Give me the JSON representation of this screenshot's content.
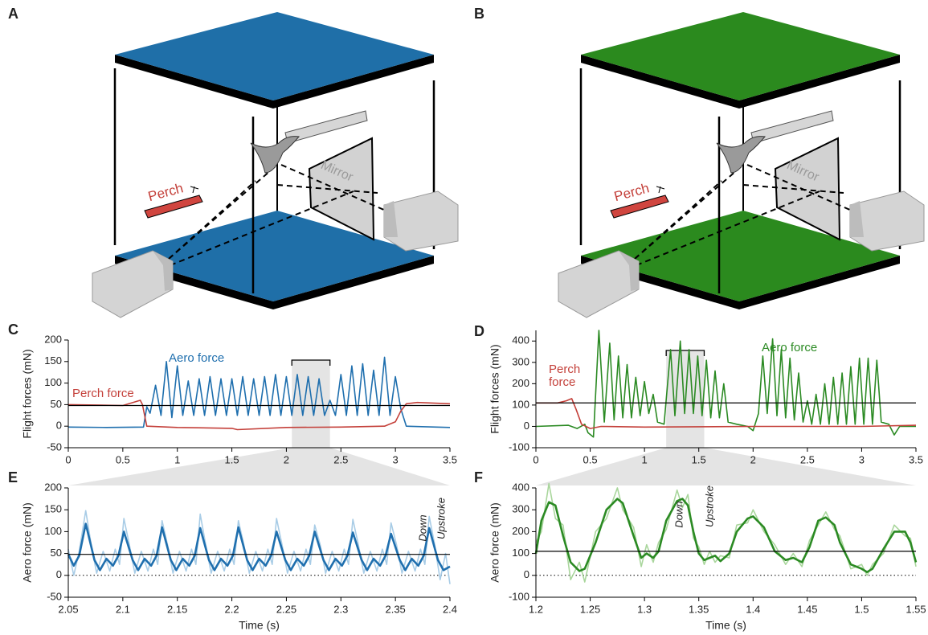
{
  "diagrams": [
    {
      "panel": "A",
      "perch": "Perch",
      "mirror": "Mirror"
    },
    {
      "panel": "B",
      "perch": "Perch",
      "mirror": "Mirror"
    }
  ],
  "chart_data": [
    {
      "type": "line",
      "panel": "C",
      "ylabel": "Flight forces (mN)",
      "xlim": [
        0,
        3.5
      ],
      "xticks": [
        0,
        0.5,
        1,
        1.5,
        2,
        2.5,
        3,
        3.5
      ],
      "ylim": [
        -50,
        200
      ],
      "yticks": [
        -50,
        0,
        50,
        100,
        150,
        200
      ],
      "reference_line": 48,
      "highlight": [
        2.05,
        2.4
      ],
      "series": [
        {
          "name": "Aero force",
          "color": "#1f6fae",
          "x": [
            0,
            0.35,
            0.69,
            0.72,
            0.75,
            0.8,
            0.85,
            0.9,
            0.95,
            1.0,
            1.05,
            1.1,
            1.15,
            1.2,
            1.25,
            1.3,
            1.35,
            1.4,
            1.45,
            1.5,
            1.55,
            1.6,
            1.65,
            1.7,
            1.75,
            1.8,
            1.85,
            1.9,
            1.95,
            2.0,
            2.05,
            2.1,
            2.15,
            2.2,
            2.25,
            2.3,
            2.35,
            2.4,
            2.45,
            2.5,
            2.55,
            2.6,
            2.65,
            2.7,
            2.75,
            2.8,
            2.85,
            2.9,
            2.95,
            3.0,
            3.05,
            3.1,
            3.5
          ],
          "values": [
            -2,
            -3,
            -2,
            45,
            30,
            95,
            25,
            150,
            20,
            140,
            25,
            105,
            25,
            110,
            25,
            115,
            25,
            110,
            25,
            110,
            25,
            115,
            25,
            110,
            25,
            115,
            25,
            120,
            25,
            115,
            25,
            120,
            25,
            115,
            25,
            110,
            25,
            60,
            25,
            120,
            25,
            140,
            25,
            145,
            25,
            130,
            25,
            160,
            25,
            115,
            40,
            0,
            -3
          ]
        },
        {
          "name": "Perch force",
          "color": "#c4403a",
          "x": [
            0,
            0.5,
            0.66,
            0.68,
            0.72,
            1.0,
            1.5,
            1.55,
            2.0,
            2.5,
            2.9,
            3.0,
            3.05,
            3.1,
            3.2,
            3.5
          ],
          "values": [
            50,
            48,
            60,
            50,
            0,
            -3,
            -5,
            -8,
            -3,
            -2,
            0,
            10,
            35,
            52,
            55,
            52
          ]
        }
      ]
    },
    {
      "type": "line",
      "panel": "D",
      "ylabel": "Flight forces (mN)",
      "xlim": [
        0,
        3.5
      ],
      "xticks": [
        0,
        0.5,
        1,
        1.5,
        2,
        2.5,
        3,
        3.5
      ],
      "ylim": [
        -100,
        450
      ],
      "yticks": [
        -100,
        0,
        100,
        200,
        300,
        400
      ],
      "reference_line": 110,
      "highlight": [
        1.2,
        1.55
      ],
      "series": [
        {
          "name": "Aero force",
          "color": "#2b8a23",
          "x": [
            0,
            0.3,
            0.38,
            0.45,
            0.48,
            0.53,
            0.58,
            0.63,
            0.68,
            0.72,
            0.76,
            0.8,
            0.84,
            0.88,
            0.92,
            0.96,
            1.0,
            1.04,
            1.08,
            1.12,
            1.18,
            1.24,
            1.28,
            1.33,
            1.37,
            1.41,
            1.45,
            1.49,
            1.53,
            1.57,
            1.61,
            1.65,
            1.69,
            1.73,
            1.77,
            1.85,
            1.95,
            2.0,
            2.05,
            2.09,
            2.13,
            2.18,
            2.22,
            2.26,
            2.3,
            2.34,
            2.38,
            2.42,
            2.46,
            2.5,
            2.54,
            2.58,
            2.62,
            2.66,
            2.7,
            2.74,
            2.78,
            2.82,
            2.86,
            2.9,
            2.94,
            2.98,
            3.02,
            3.06,
            3.1,
            3.14,
            3.18,
            3.25,
            3.3,
            3.35,
            3.5
          ],
          "values": [
            0,
            5,
            -10,
            10,
            -30,
            -50,
            450,
            20,
            390,
            30,
            330,
            40,
            290,
            40,
            230,
            50,
            210,
            60,
            150,
            20,
            10,
            360,
            50,
            400,
            60,
            360,
            60,
            330,
            50,
            310,
            40,
            260,
            40,
            200,
            20,
            10,
            0,
            -20,
            60,
            330,
            60,
            410,
            50,
            360,
            40,
            320,
            30,
            250,
            20,
            120,
            10,
            150,
            10,
            200,
            10,
            230,
            10,
            250,
            10,
            280,
            10,
            320,
            10,
            320,
            10,
            310,
            20,
            10,
            -40,
            0,
            0
          ]
        },
        {
          "name": "Perch force",
          "color": "#c4403a",
          "x": [
            0,
            0.2,
            0.28,
            0.33,
            0.37,
            0.42,
            0.5,
            0.6,
            1.0,
            2.0,
            3.0,
            3.5
          ],
          "values": [
            110,
            110,
            120,
            130,
            80,
            10,
            -10,
            0,
            -3,
            0,
            0,
            5
          ]
        }
      ]
    },
    {
      "type": "line",
      "panel": "E",
      "xlabel": "Time (s)",
      "ylabel": "Aero force (mN)",
      "xlim": [
        2.05,
        2.4
      ],
      "xticks": [
        2.05,
        2.1,
        2.15,
        2.2,
        2.25,
        2.3,
        2.35,
        2.4
      ],
      "ylim": [
        -50,
        200
      ],
      "yticks": [
        -50,
        0,
        50,
        100,
        150,
        200
      ],
      "reference_line": 48,
      "dotted_line": 0,
      "annotations": [
        "Down",
        "Upstroke"
      ],
      "series": [
        {
          "color": "#a8cce6",
          "x": [
            2.05,
            2.055,
            2.06,
            2.066,
            2.071,
            2.076,
            2.082,
            2.088,
            2.093,
            2.097,
            2.101,
            2.106,
            2.111,
            2.117,
            2.123,
            2.128,
            2.132,
            2.136,
            2.141,
            2.146,
            2.152,
            2.158,
            2.163,
            2.167,
            2.171,
            2.176,
            2.181,
            2.187,
            2.193,
            2.198,
            2.202,
            2.206,
            2.211,
            2.216,
            2.222,
            2.228,
            2.233,
            2.237,
            2.241,
            2.246,
            2.251,
            2.257,
            2.263,
            2.268,
            2.272,
            2.276,
            2.281,
            2.286,
            2.292,
            2.298,
            2.303,
            2.307,
            2.311,
            2.316,
            2.321,
            2.327,
            2.333,
            2.338,
            2.342,
            2.346,
            2.351,
            2.356,
            2.362,
            2.368,
            2.373,
            2.377,
            2.381,
            2.386,
            2.391,
            2.396,
            2.4
          ],
          "values": [
            60,
            0,
            55,
            148,
            70,
            5,
            55,
            10,
            60,
            25,
            130,
            70,
            5,
            55,
            10,
            60,
            25,
            125,
            70,
            5,
            55,
            10,
            60,
            25,
            140,
            70,
            5,
            55,
            10,
            60,
            25,
            125,
            70,
            5,
            55,
            10,
            60,
            25,
            130,
            70,
            5,
            55,
            10,
            60,
            25,
            115,
            70,
            5,
            55,
            10,
            60,
            25,
            128,
            70,
            5,
            55,
            10,
            60,
            25,
            120,
            70,
            5,
            55,
            10,
            60,
            25,
            135,
            70,
            -10,
            50,
            -20
          ]
        },
        {
          "color": "#1f6fae",
          "x": [
            2.05,
            2.055,
            2.06,
            2.066,
            2.074,
            2.079,
            2.085,
            2.091,
            2.096,
            2.101,
            2.109,
            2.114,
            2.12,
            2.126,
            2.131,
            2.136,
            2.144,
            2.149,
            2.155,
            2.161,
            2.166,
            2.171,
            2.179,
            2.184,
            2.19,
            2.196,
            2.201,
            2.206,
            2.214,
            2.219,
            2.225,
            2.231,
            2.236,
            2.241,
            2.249,
            2.254,
            2.26,
            2.266,
            2.271,
            2.276,
            2.284,
            2.289,
            2.295,
            2.301,
            2.306,
            2.311,
            2.319,
            2.324,
            2.33,
            2.336,
            2.341,
            2.346,
            2.354,
            2.359,
            2.365,
            2.371,
            2.376,
            2.381,
            2.389,
            2.394,
            2.4
          ],
          "values": [
            48,
            22,
            45,
            118,
            35,
            12,
            38,
            22,
            45,
            100,
            35,
            12,
            38,
            22,
            45,
            110,
            35,
            12,
            38,
            22,
            45,
            108,
            35,
            12,
            38,
            22,
            45,
            110,
            35,
            12,
            38,
            22,
            45,
            100,
            35,
            12,
            38,
            22,
            45,
            100,
            35,
            12,
            38,
            22,
            45,
            98,
            35,
            12,
            38,
            22,
            45,
            95,
            35,
            12,
            38,
            22,
            45,
            108,
            35,
            12,
            20
          ]
        }
      ]
    },
    {
      "type": "line",
      "panel": "F",
      "xlabel": "Time (s)",
      "ylabel": "Aero force (mN)",
      "xlim": [
        1.2,
        1.55
      ],
      "xticks": [
        1.2,
        1.25,
        1.3,
        1.35,
        1.4,
        1.45,
        1.5,
        1.55
      ],
      "ylim": [
        -100,
        400
      ],
      "yticks": [
        -100,
        0,
        100,
        200,
        300,
        400
      ],
      "reference_line": 110,
      "dotted_line": 0,
      "annotations": [
        "Down",
        "Upstroke"
      ],
      "series": [
        {
          "color": "#a9d69c",
          "x": [
            1.2,
            1.205,
            1.212,
            1.218,
            1.225,
            1.232,
            1.24,
            1.245,
            1.255,
            1.265,
            1.275,
            1.28,
            1.29,
            1.297,
            1.302,
            1.308,
            1.313,
            1.32,
            1.33,
            1.335,
            1.34,
            1.345,
            1.35,
            1.355,
            1.36,
            1.365,
            1.37,
            1.378,
            1.385,
            1.395,
            1.4,
            1.41,
            1.42,
            1.43,
            1.437,
            1.445,
            1.452,
            1.46,
            1.467,
            1.475,
            1.48,
            1.49,
            1.5,
            1.505,
            1.51,
            1.52,
            1.53,
            1.54,
            1.545,
            1.55
          ],
          "values": [
            150,
            200,
            420,
            260,
            230,
            -20,
            60,
            -30,
            200,
            260,
            400,
            300,
            220,
            40,
            140,
            60,
            150,
            210,
            390,
            310,
            370,
            170,
            130,
            50,
            110,
            60,
            90,
            80,
            230,
            240,
            300,
            200,
            140,
            50,
            100,
            40,
            160,
            230,
            290,
            210,
            180,
            30,
            50,
            0,
            50,
            100,
            230,
            180,
            170,
            40
          ]
        },
        {
          "color": "#2b8a23",
          "x": [
            1.2,
            1.205,
            1.212,
            1.218,
            1.225,
            1.232,
            1.24,
            1.245,
            1.255,
            1.265,
            1.275,
            1.28,
            1.29,
            1.297,
            1.302,
            1.308,
            1.313,
            1.32,
            1.33,
            1.335,
            1.34,
            1.345,
            1.35,
            1.355,
            1.36,
            1.365,
            1.37,
            1.378,
            1.385,
            1.395,
            1.4,
            1.41,
            1.42,
            1.43,
            1.437,
            1.445,
            1.452,
            1.46,
            1.467,
            1.475,
            1.48,
            1.49,
            1.5,
            1.505,
            1.51,
            1.52,
            1.53,
            1.54,
            1.545,
            1.55
          ],
          "values": [
            100,
            250,
            335,
            320,
            180,
            60,
            20,
            30,
            150,
            300,
            350,
            330,
            180,
            80,
            100,
            80,
            110,
            250,
            340,
            350,
            320,
            200,
            100,
            70,
            80,
            90,
            65,
            100,
            200,
            260,
            270,
            220,
            110,
            70,
            80,
            60,
            130,
            250,
            265,
            230,
            150,
            50,
            30,
            15,
            30,
            120,
            200,
            200,
            150,
            60
          ]
        }
      ]
    }
  ]
}
